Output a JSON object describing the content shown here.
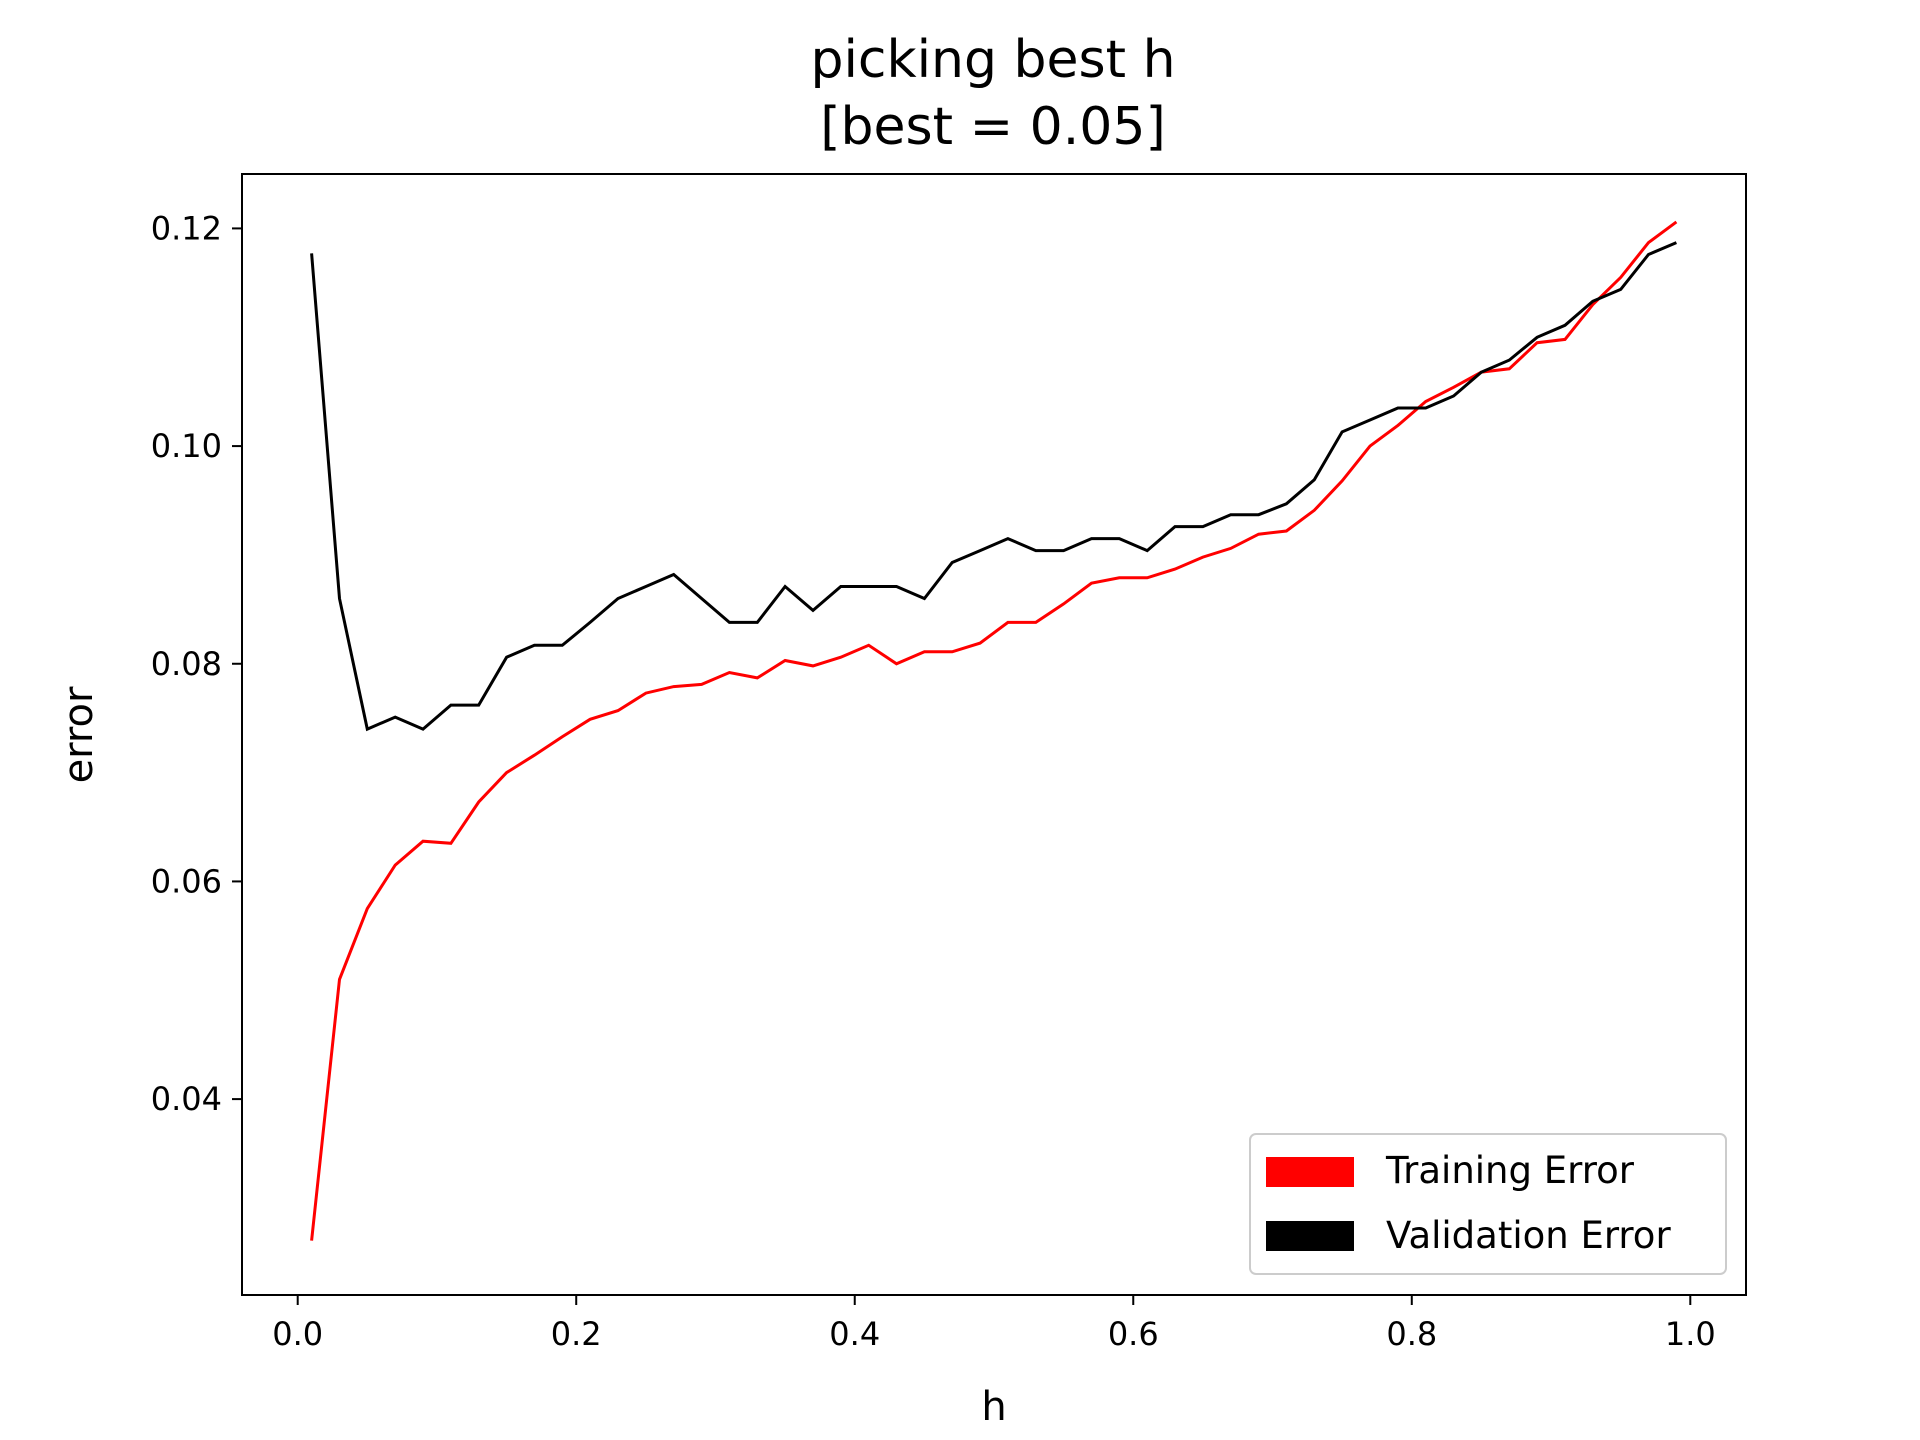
{
  "chart_data": {
    "type": "line",
    "title": "picking best h",
    "subtitle": "[best = 0.05]",
    "xlabel": "h",
    "ylabel": "error",
    "xlim": [
      -0.04,
      1.04
    ],
    "ylim": [
      0.022,
      0.125
    ],
    "xticks": [
      0.0,
      0.2,
      0.4,
      0.6,
      0.8,
      1.0
    ],
    "xtick_labels": [
      "0.0",
      "0.2",
      "0.4",
      "0.6",
      "0.8",
      "1.0"
    ],
    "yticks": [
      0.04,
      0.06,
      0.08,
      0.1,
      0.12
    ],
    "ytick_labels": [
      "0.04",
      "0.06",
      "0.08",
      "0.10",
      "0.12"
    ],
    "grid": false,
    "legend_position": "bottom-right",
    "x": [
      0.01,
      0.03,
      0.05,
      0.07,
      0.09,
      0.11,
      0.13,
      0.15,
      0.17,
      0.19,
      0.21,
      0.23,
      0.25,
      0.27,
      0.29,
      0.31,
      0.33,
      0.35,
      0.37,
      0.39,
      0.41,
      0.43,
      0.45,
      0.47,
      0.49,
      0.51,
      0.53,
      0.55,
      0.57,
      0.59,
      0.61,
      0.63,
      0.65,
      0.67,
      0.69,
      0.71,
      0.73,
      0.75,
      0.77,
      0.79,
      0.81,
      0.83,
      0.85,
      0.87,
      0.89,
      0.91,
      0.93,
      0.95,
      0.97,
      0.99
    ],
    "series": [
      {
        "name": "Training Error",
        "color": "#ff0000",
        "values": [
          0.027,
          0.051,
          0.0575,
          0.0615,
          0.0637,
          0.0635,
          0.0673,
          0.07,
          0.0716,
          0.0733,
          0.0749,
          0.0757,
          0.0773,
          0.0779,
          0.0781,
          0.0792,
          0.0787,
          0.0803,
          0.0798,
          0.0806,
          0.0817,
          0.08,
          0.0811,
          0.0811,
          0.0819,
          0.0838,
          0.0838,
          0.0855,
          0.0874,
          0.0879,
          0.0879,
          0.0887,
          0.0898,
          0.0906,
          0.0919,
          0.0922,
          0.0941,
          0.0968,
          0.1,
          0.1019,
          0.1041,
          0.1054,
          0.1068,
          0.1071,
          0.1095,
          0.1098,
          0.113,
          0.1155,
          0.1187,
          0.1206
        ]
      },
      {
        "name": "Validation Error",
        "color": "#000000",
        "values": [
          0.1177,
          0.086,
          0.074,
          0.0751,
          0.074,
          0.0762,
          0.0762,
          0.0806,
          0.0817,
          0.0817,
          0.0838,
          0.086,
          0.0871,
          0.0882,
          0.086,
          0.0838,
          0.0838,
          0.0871,
          0.0849,
          0.0871,
          0.0871,
          0.0871,
          0.086,
          0.0893,
          0.0904,
          0.0915,
          0.0904,
          0.0904,
          0.0915,
          0.0915,
          0.0904,
          0.0926,
          0.0926,
          0.0937,
          0.0937,
          0.0947,
          0.0969,
          0.1013,
          0.1024,
          0.1035,
          0.1035,
          0.1046,
          0.1068,
          0.1079,
          0.11,
          0.1111,
          0.1133,
          0.1144,
          0.1176,
          0.1187
        ]
      }
    ]
  }
}
